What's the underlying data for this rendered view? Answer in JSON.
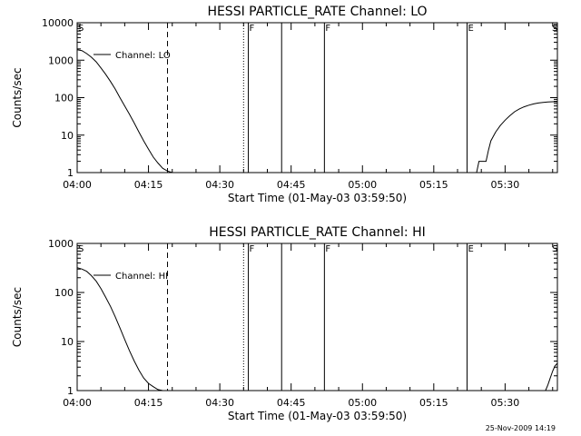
{
  "footer": {
    "timestamp": "25-Nov-2009 14:19"
  },
  "chart_data": [
    {
      "type": "line",
      "title": "HESSI PARTICLE_RATE Channel: LO",
      "xlabel": "Start Time (01-May-03 03:59:50)",
      "ylabel": "Counts/sec",
      "y_scale": "log",
      "x_unit": "minutes after 04:00",
      "xlim": [
        0,
        101
      ],
      "ylim": [
        1,
        10000
      ],
      "x_tick_labels": [
        "04:00",
        "04:15",
        "04:30",
        "04:45",
        "05:00",
        "05:15",
        "05:30"
      ],
      "y_tick_labels": [
        "1",
        "10",
        "100",
        "1000",
        "10000"
      ],
      "legend": {
        "label": "Channel: LO",
        "placement": "top-left"
      },
      "series": [
        {
          "name": "Channel: LO",
          "segments": [
            {
              "x": [
                0,
                1,
                2,
                3,
                4,
                5,
                6,
                7,
                8,
                9,
                10,
                11,
                12,
                13,
                14,
                15,
                16,
                17,
                18,
                19,
                20
              ],
              "y": [
                1900,
                1800,
                1500,
                1200,
                900,
                620,
                420,
                270,
                170,
                100,
                60,
                36,
                21,
                12,
                7,
                4.2,
                2.6,
                1.8,
                1.3,
                1.1,
                1
              ]
            },
            {
              "x": [
                83,
                84,
                84.5,
                86,
                86.5,
                87,
                88,
                89,
                90,
                91,
                92,
                93,
                94,
                95,
                96,
                97,
                98,
                99,
                100,
                101
              ],
              "y": [
                1,
                1,
                2,
                2,
                4,
                7,
                12,
                18,
                25,
                33,
                42,
                50,
                57,
                63,
                68,
                72,
                75,
                77,
                78,
                78
              ]
            }
          ]
        }
      ],
      "annotations": [
        {
          "x": 0,
          "label": "S",
          "style": "solid"
        },
        {
          "x": 19,
          "label": "",
          "style": "dashed"
        },
        {
          "x": 35,
          "label": "",
          "style": "dotted"
        },
        {
          "x": 36,
          "label": "F",
          "style": "solid"
        },
        {
          "x": 43,
          "label": "",
          "style": "solid"
        },
        {
          "x": 52,
          "label": "F",
          "style": "solid"
        },
        {
          "x": 82,
          "label": "E",
          "style": "solid"
        },
        {
          "x": 101,
          "label": "S",
          "style": "dashdot"
        }
      ]
    },
    {
      "type": "line",
      "title": "HESSI PARTICLE_RATE Channel: HI",
      "xlabel": "Start Time (01-May-03 03:59:50)",
      "ylabel": "Counts/sec",
      "y_scale": "log",
      "x_unit": "minutes after 04:00",
      "xlim": [
        0,
        101
      ],
      "ylim": [
        1,
        1000
      ],
      "x_tick_labels": [
        "04:00",
        "04:15",
        "04:30",
        "04:45",
        "05:00",
        "05:15",
        "05:30"
      ],
      "y_tick_labels": [
        "1",
        "10",
        "100",
        "1000"
      ],
      "legend": {
        "label": "Channel: HI",
        "placement": "top-left"
      },
      "series": [
        {
          "name": "Channel: HI",
          "segments": [
            {
              "x": [
                0,
                1,
                2,
                3,
                4,
                5,
                6,
                7,
                8,
                9,
                10,
                11,
                12,
                13,
                14,
                15,
                16,
                17,
                18
              ],
              "y": [
                320,
                300,
                270,
                220,
                170,
                120,
                80,
                52,
                32,
                19,
                11,
                6.5,
                4,
                2.6,
                1.8,
                1.4,
                1.2,
                1.05,
                1
              ]
            },
            {
              "x": [
                98.5,
                99,
                99.5,
                100,
                100.5,
                101
              ],
              "y": [
                1,
                1.3,
                1.8,
                2.5,
                3.2,
                3.6
              ]
            }
          ]
        }
      ],
      "annotations": [
        {
          "x": 0,
          "label": "S",
          "style": "solid"
        },
        {
          "x": 19,
          "label": "",
          "style": "dashed"
        },
        {
          "x": 35,
          "label": "",
          "style": "dotted"
        },
        {
          "x": 36,
          "label": "F",
          "style": "solid"
        },
        {
          "x": 43,
          "label": "",
          "style": "solid"
        },
        {
          "x": 52,
          "label": "F",
          "style": "solid"
        },
        {
          "x": 82,
          "label": "E",
          "style": "solid"
        },
        {
          "x": 101,
          "label": "S",
          "style": "dashdot"
        }
      ]
    }
  ]
}
